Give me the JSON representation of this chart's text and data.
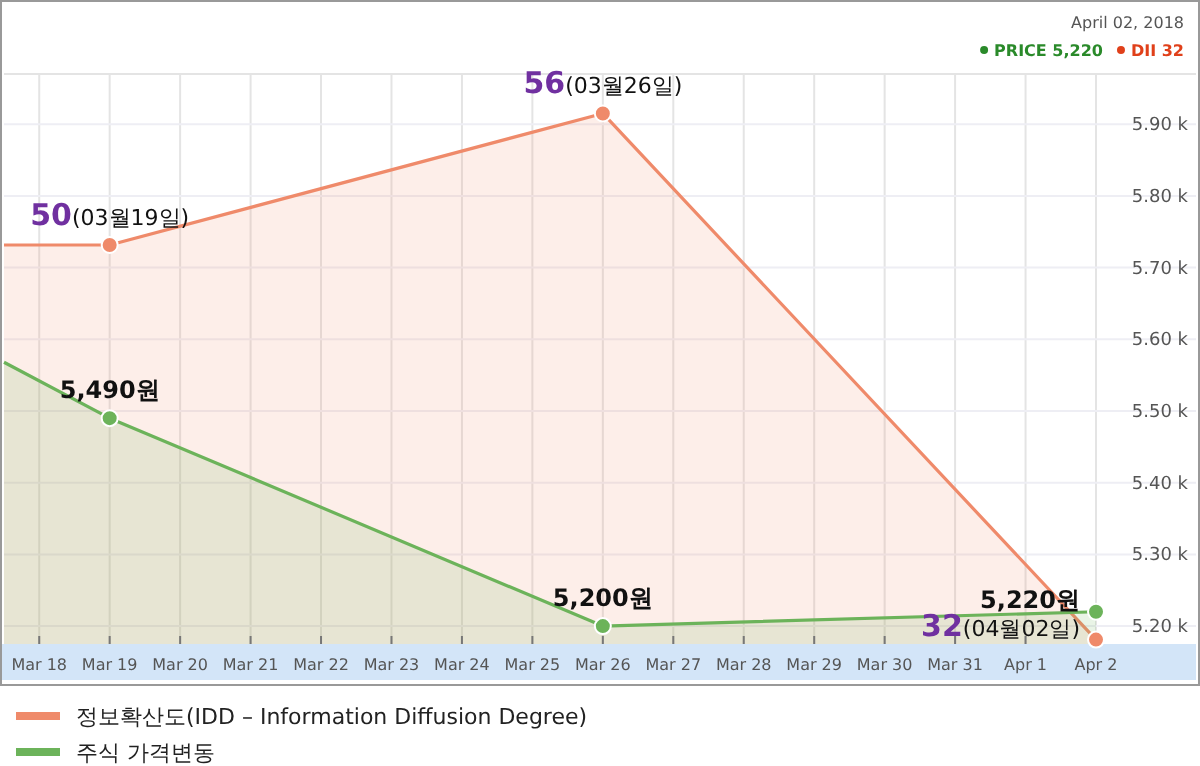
{
  "chart_data": {
    "type": "area",
    "x": [
      "2018-03-17T12:00",
      "2018-03-19",
      "2018-03-26",
      "2018-04-02"
    ],
    "xlim": [
      "2018-03-17T12:00",
      "2018-04-02"
    ],
    "xticks": [
      {
        "value": "2018-03-18",
        "label": "Mar 18"
      },
      {
        "value": "2018-03-19",
        "label": "Mar 19"
      },
      {
        "value": "2018-03-20",
        "label": "Mar 20"
      },
      {
        "value": "2018-03-21",
        "label": "Mar 21"
      },
      {
        "value": "2018-03-22",
        "label": "Mar 22"
      },
      {
        "value": "2018-03-23",
        "label": "Mar 23"
      },
      {
        "value": "2018-03-24",
        "label": "Mar 24"
      },
      {
        "value": "2018-03-25",
        "label": "Mar 25"
      },
      {
        "value": "2018-03-26",
        "label": "Mar 26"
      },
      {
        "value": "2018-03-27",
        "label": "Mar 27"
      },
      {
        "value": "2018-03-28",
        "label": "Mar 28"
      },
      {
        "value": "2018-03-29",
        "label": "Mar 29"
      },
      {
        "value": "2018-03-30",
        "label": "Mar 30"
      },
      {
        "value": "2018-03-31",
        "label": "Mar 31"
      },
      {
        "value": "2018-04-01",
        "label": "Apr 1"
      },
      {
        "value": "2018-04-02",
        "label": "Apr 2"
      }
    ],
    "ylim": [
      5175,
      5970
    ],
    "yticks": [
      {
        "value": 5200,
        "label": "5.20 k"
      },
      {
        "value": 5300,
        "label": "5.30 k"
      },
      {
        "value": 5400,
        "label": "5.40 k"
      },
      {
        "value": 5500,
        "label": "5.50 k"
      },
      {
        "value": 5600,
        "label": "5.60 k"
      },
      {
        "value": 5700,
        "label": "5.70 k"
      },
      {
        "value": 5800,
        "label": "5.80 k"
      },
      {
        "value": 5900,
        "label": "5.90 k"
      }
    ],
    "y2lim": [
      31.8,
      57.8
    ],
    "tick_labels": "xy",
    "series": [
      {
        "name": "정보확산도(IDD – Information Diffusion Degree)",
        "color": "#ef8a6a",
        "axis": "y2",
        "values": [
          50,
          50,
          56,
          32
        ],
        "value_labels": [
          null,
          "50(03월19일)",
          "56(03월26일)",
          "32(04월02일)"
        ]
      },
      {
        "name": "주식 가격변동",
        "color": "#6cb35a",
        "values": [
          5568,
          5490,
          5200,
          5220
        ],
        "value_labels": [
          null,
          "5,490원",
          "5,200원",
          "5,220원"
        ]
      }
    ],
    "annotations": [
      "April 02, 2018",
      "PRICE 5,220",
      "DII 32"
    ],
    "grid": true,
    "legend": "bottom",
    "marker": "circle"
  }
}
